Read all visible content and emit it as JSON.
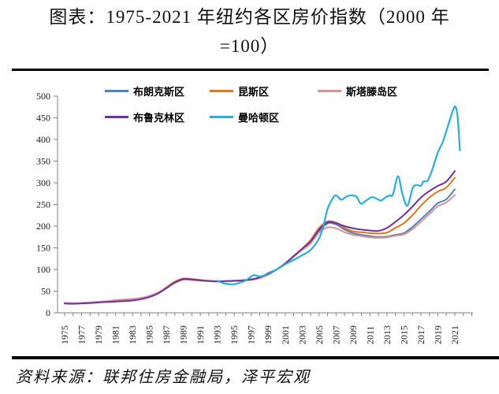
{
  "title": {
    "line1": "图表：1975-2021 年纽约各区房价指数（2000 年",
    "line2": "=100）"
  },
  "source": "资料来源：联邦住房金融局，泽平宏观",
  "chart_data": {
    "type": "line",
    "title": "1975-2021 年纽约各区房价指数（2000 年=100）",
    "xlabel": "",
    "ylabel": "",
    "grid": false,
    "legend_position": "top",
    "x_axis": {
      "range": [
        1975,
        2023
      ],
      "minor_tick_step_years": 1,
      "tick_labels": [
        "1975",
        "1977",
        "1979",
        "1981",
        "1983",
        "1985",
        "1987",
        "1989",
        "1991",
        "1993",
        "1995",
        "1997",
        "1999",
        "2001",
        "2003",
        "2005",
        "2007",
        "2009",
        "2011",
        "2013",
        "2015",
        "2017",
        "2019",
        "2021"
      ]
    },
    "y_axis": {
      "range": [
        0,
        500
      ],
      "tick_labels": [
        0,
        50,
        100,
        150,
        200,
        250,
        300,
        350,
        400,
        450,
        500
      ]
    },
    "series": [
      {
        "id": "bronx",
        "name": "布朗克斯区",
        "color": "#4f81bd",
        "points": [
          [
            1975,
            22
          ],
          [
            1976,
            21.5
          ],
          [
            1977,
            22
          ],
          [
            1978,
            23
          ],
          [
            1979,
            24.5
          ],
          [
            1980,
            25.5
          ],
          [
            1981,
            26.5
          ],
          [
            1982,
            27.5
          ],
          [
            1983,
            29
          ],
          [
            1984,
            32
          ],
          [
            1985,
            37
          ],
          [
            1986,
            45
          ],
          [
            1987,
            57
          ],
          [
            1988,
            70
          ],
          [
            1989,
            78
          ],
          [
            1990,
            77
          ],
          [
            1991,
            75
          ],
          [
            1992,
            73.5
          ],
          [
            1993,
            72.5
          ],
          [
            1994,
            73
          ],
          [
            1995,
            73.5
          ],
          [
            1996,
            74.5
          ],
          [
            1997,
            76.5
          ],
          [
            1998,
            81
          ],
          [
            1999,
            89
          ],
          [
            2000,
            100
          ],
          [
            2001,
            114
          ],
          [
            2002,
            130
          ],
          [
            2003,
            146
          ],
          [
            2004,
            162
          ],
          [
            2005,
            188
          ],
          [
            2006,
            206
          ],
          [
            2007,
            204
          ],
          [
            2008,
            192
          ],
          [
            2009,
            184
          ],
          [
            2010,
            180
          ],
          [
            2011,
            177
          ],
          [
            2012,
            175
          ],
          [
            2013,
            176
          ],
          [
            2014,
            180
          ],
          [
            2015,
            184
          ],
          [
            2016,
            198
          ],
          [
            2017,
            216
          ],
          [
            2018,
            234
          ],
          [
            2019,
            253
          ],
          [
            2020,
            262
          ],
          [
            2021,
            285
          ]
        ]
      },
      {
        "id": "queens",
        "name": "昆斯区",
        "color": "#de7a1d",
        "points": [
          [
            1975,
            22
          ],
          [
            1976,
            21.5
          ],
          [
            1977,
            22
          ],
          [
            1978,
            23.5
          ],
          [
            1979,
            25
          ],
          [
            1980,
            26
          ],
          [
            1981,
            27
          ],
          [
            1982,
            28
          ],
          [
            1983,
            29.5
          ],
          [
            1984,
            32.5
          ],
          [
            1985,
            38
          ],
          [
            1986,
            46
          ],
          [
            1987,
            59
          ],
          [
            1988,
            72
          ],
          [
            1989,
            79
          ],
          [
            1990,
            78
          ],
          [
            1991,
            76
          ],
          [
            1992,
            74
          ],
          [
            1993,
            73
          ],
          [
            1994,
            73
          ],
          [
            1995,
            73.5
          ],
          [
            1996,
            75
          ],
          [
            1997,
            77
          ],
          [
            1998,
            82
          ],
          [
            1999,
            90
          ],
          [
            2000,
            100
          ],
          [
            2001,
            114
          ],
          [
            2002,
            131
          ],
          [
            2003,
            148
          ],
          [
            2004,
            168
          ],
          [
            2005,
            196
          ],
          [
            2006,
            211
          ],
          [
            2007,
            208
          ],
          [
            2008,
            196
          ],
          [
            2009,
            188
          ],
          [
            2010,
            186
          ],
          [
            2011,
            184
          ],
          [
            2012,
            183
          ],
          [
            2013,
            185
          ],
          [
            2014,
            196
          ],
          [
            2015,
            207
          ],
          [
            2016,
            225
          ],
          [
            2017,
            247
          ],
          [
            2018,
            266
          ],
          [
            2019,
            280
          ],
          [
            2020,
            289
          ],
          [
            2021,
            312
          ]
        ]
      },
      {
        "id": "staten-island",
        "name": "斯塔滕岛区",
        "color": "#d49694",
        "points": [
          [
            1975,
            23
          ],
          [
            1976,
            22.5
          ],
          [
            1977,
            23
          ],
          [
            1978,
            24
          ],
          [
            1979,
            25.5
          ],
          [
            1980,
            27
          ],
          [
            1981,
            29.5
          ],
          [
            1982,
            31
          ],
          [
            1983,
            32
          ],
          [
            1984,
            34.5
          ],
          [
            1985,
            39.5
          ],
          [
            1986,
            47
          ],
          [
            1987,
            58
          ],
          [
            1988,
            69
          ],
          [
            1989,
            76
          ],
          [
            1990,
            75.5
          ],
          [
            1991,
            74
          ],
          [
            1992,
            73
          ],
          [
            1993,
            72.5
          ],
          [
            1994,
            73
          ],
          [
            1995,
            73.5
          ],
          [
            1996,
            74.5
          ],
          [
            1997,
            76
          ],
          [
            1998,
            80
          ],
          [
            1999,
            88
          ],
          [
            2000,
            100
          ],
          [
            2001,
            113
          ],
          [
            2002,
            129
          ],
          [
            2003,
            145
          ],
          [
            2004,
            160
          ],
          [
            2005,
            185
          ],
          [
            2006,
            197
          ],
          [
            2007,
            195
          ],
          [
            2008,
            186
          ],
          [
            2009,
            180
          ],
          [
            2010,
            177
          ],
          [
            2011,
            174
          ],
          [
            2012,
            173
          ],
          [
            2013,
            174
          ],
          [
            2014,
            178
          ],
          [
            2015,
            181
          ],
          [
            2016,
            193
          ],
          [
            2017,
            210
          ],
          [
            2018,
            228
          ],
          [
            2019,
            246
          ],
          [
            2020,
            255
          ],
          [
            2021,
            272
          ]
        ]
      },
      {
        "id": "brooklyn",
        "name": "布鲁克林区",
        "color": "#7030a0",
        "points": [
          [
            1975,
            21.5
          ],
          [
            1976,
            21
          ],
          [
            1977,
            21.5
          ],
          [
            1978,
            22.5
          ],
          [
            1979,
            24
          ],
          [
            1980,
            25
          ],
          [
            1981,
            26
          ],
          [
            1982,
            27
          ],
          [
            1983,
            28.5
          ],
          [
            1984,
            31.5
          ],
          [
            1985,
            36.5
          ],
          [
            1986,
            44.5
          ],
          [
            1987,
            57
          ],
          [
            1988,
            70
          ],
          [
            1989,
            78
          ],
          [
            1990,
            77
          ],
          [
            1991,
            75
          ],
          [
            1992,
            73.5
          ],
          [
            1993,
            72.5
          ],
          [
            1994,
            73.5
          ],
          [
            1995,
            74
          ],
          [
            1996,
            75
          ],
          [
            1997,
            77
          ],
          [
            1998,
            82
          ],
          [
            1999,
            90
          ],
          [
            2000,
            100
          ],
          [
            2001,
            114
          ],
          [
            2002,
            131
          ],
          [
            2003,
            148
          ],
          [
            2004,
            165
          ],
          [
            2005,
            192
          ],
          [
            2006,
            209
          ],
          [
            2007,
            207
          ],
          [
            2008,
            200
          ],
          [
            2009,
            195
          ],
          [
            2010,
            192
          ],
          [
            2011,
            190
          ],
          [
            2012,
            189
          ],
          [
            2013,
            196
          ],
          [
            2014,
            210
          ],
          [
            2015,
            226
          ],
          [
            2016,
            245
          ],
          [
            2017,
            266
          ],
          [
            2018,
            281
          ],
          [
            2019,
            293
          ],
          [
            2020,
            303
          ],
          [
            2021,
            327
          ]
        ]
      },
      {
        "id": "manhattan",
        "name": "曼哈顿区",
        "color": "#25ade4",
        "points": [
          [
            1993,
            74
          ],
          [
            1993.5,
            70
          ],
          [
            1994,
            67
          ],
          [
            1995,
            66
          ],
          [
            1995.7,
            70
          ],
          [
            1996.3,
            74
          ],
          [
            1997,
            84
          ],
          [
            1997.4,
            87
          ],
          [
            1998,
            84
          ],
          [
            1998.6,
            87
          ],
          [
            1999,
            92
          ],
          [
            2000,
            100
          ],
          [
            2001,
            112
          ],
          [
            2002,
            122
          ],
          [
            2003,
            133
          ],
          [
            2004,
            145
          ],
          [
            2005,
            172
          ],
          [
            2005.5,
            200
          ],
          [
            2006,
            240
          ],
          [
            2006.6,
            264
          ],
          [
            2007,
            271
          ],
          [
            2007.6,
            261
          ],
          [
            2008.2,
            268
          ],
          [
            2008.8,
            271
          ],
          [
            2009.4,
            268
          ],
          [
            2009.9,
            252
          ],
          [
            2010.4,
            257
          ],
          [
            2011.2,
            267
          ],
          [
            2011.8,
            263
          ],
          [
            2012.3,
            259
          ],
          [
            2012.8,
            266
          ],
          [
            2013.3,
            271
          ],
          [
            2013.7,
            273
          ],
          [
            2014.3,
            315
          ],
          [
            2014.8,
            276
          ],
          [
            2015.4,
            247
          ],
          [
            2016,
            286
          ],
          [
            2016.4,
            295
          ],
          [
            2017,
            293
          ],
          [
            2017.3,
            303
          ],
          [
            2017.8,
            305
          ],
          [
            2018.3,
            328
          ],
          [
            2019,
            370
          ],
          [
            2019.6,
            395
          ],
          [
            2020.2,
            432
          ],
          [
            2020.8,
            468
          ],
          [
            2021.1,
            475
          ],
          [
            2021.35,
            448
          ],
          [
            2021.6,
            375
          ]
        ]
      }
    ]
  }
}
